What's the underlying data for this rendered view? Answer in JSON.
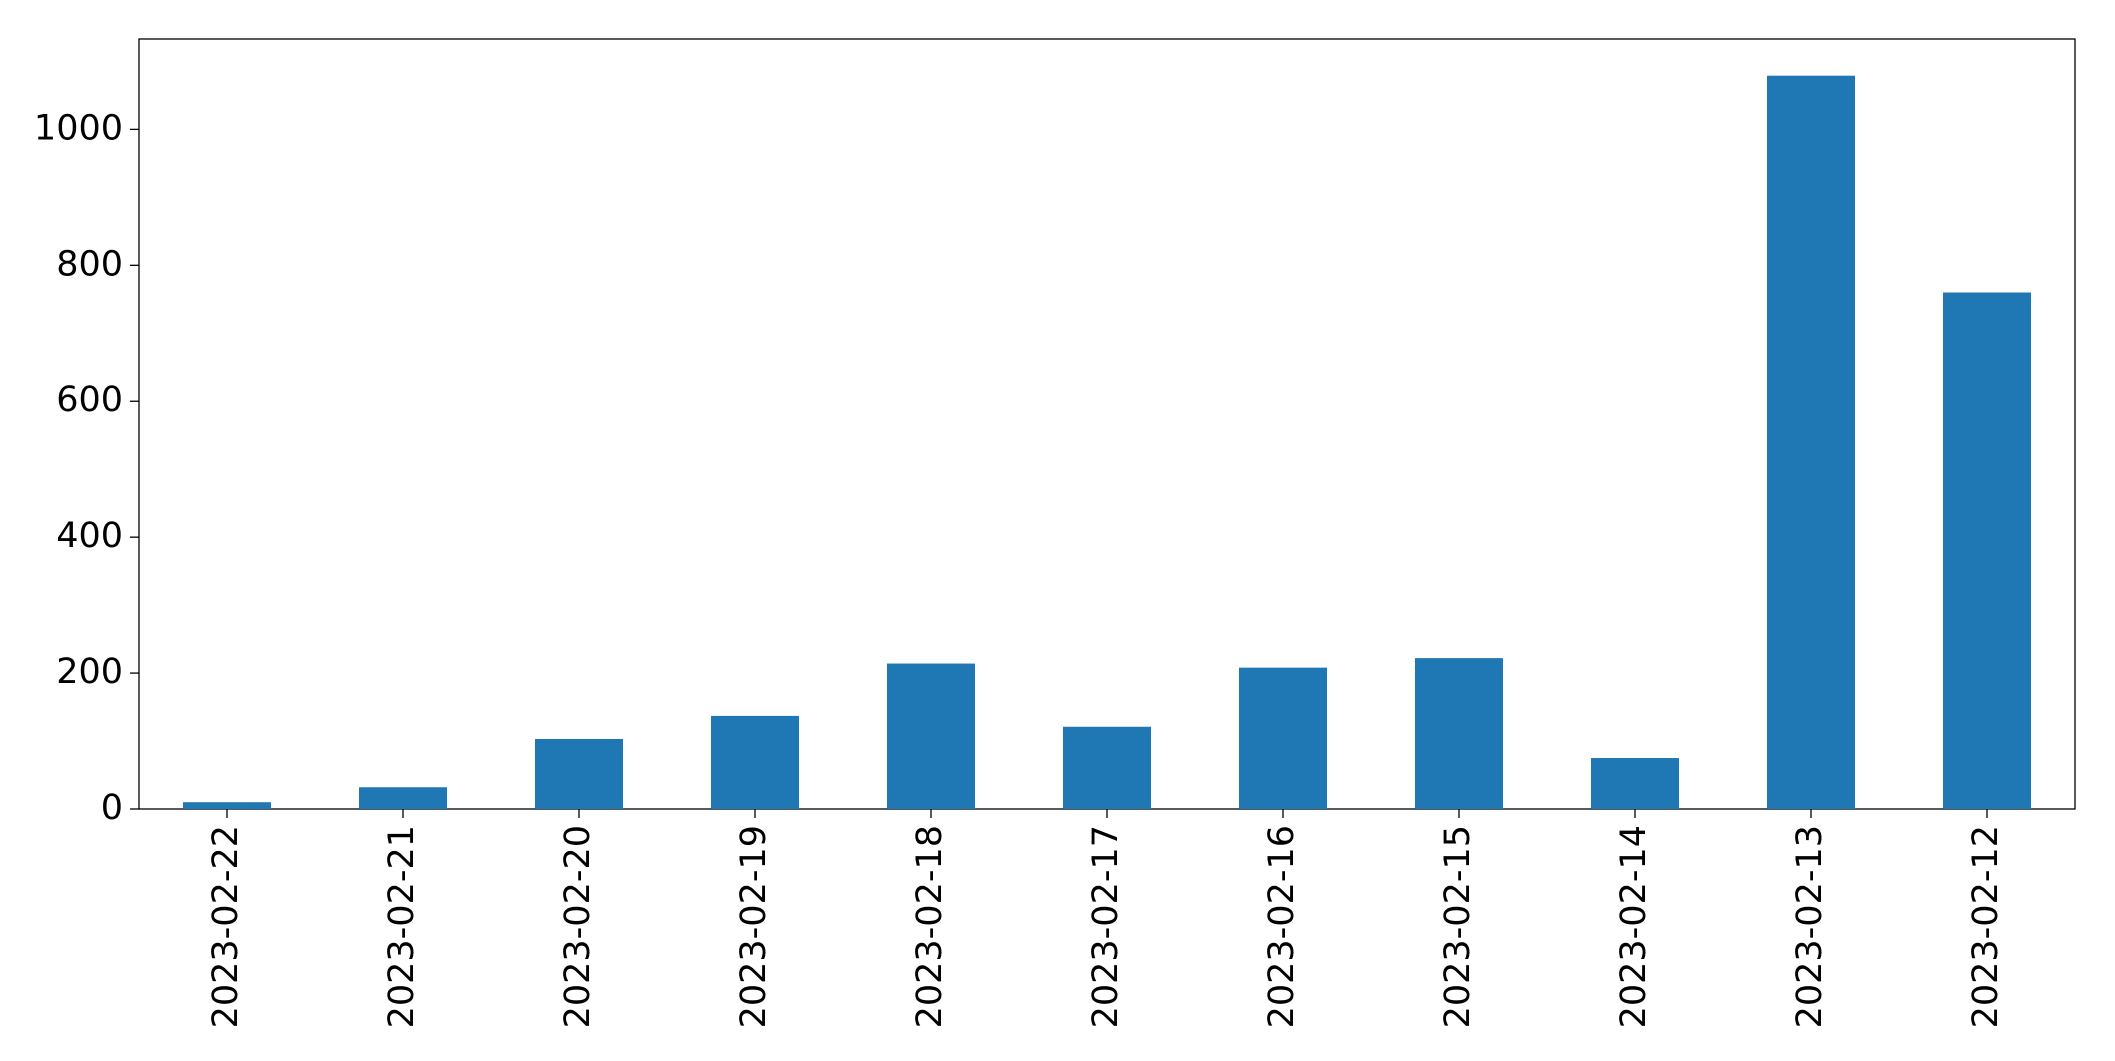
{
  "chart_data": {
    "type": "bar",
    "categories": [
      "2023-02-22",
      "2023-02-21",
      "2023-02-20",
      "2023-02-19",
      "2023-02-18",
      "2023-02-17",
      "2023-02-16",
      "2023-02-15",
      "2023-02-14",
      "2023-02-13",
      "2023-02-12"
    ],
    "values": [
      10,
      32,
      103,
      137,
      214,
      121,
      208,
      222,
      75,
      1079,
      760
    ],
    "color": "#1f77b4",
    "ylim": [
      0,
      1133
    ],
    "yticks": [
      0,
      200,
      400,
      600,
      800,
      1000
    ],
    "grid": false
  }
}
